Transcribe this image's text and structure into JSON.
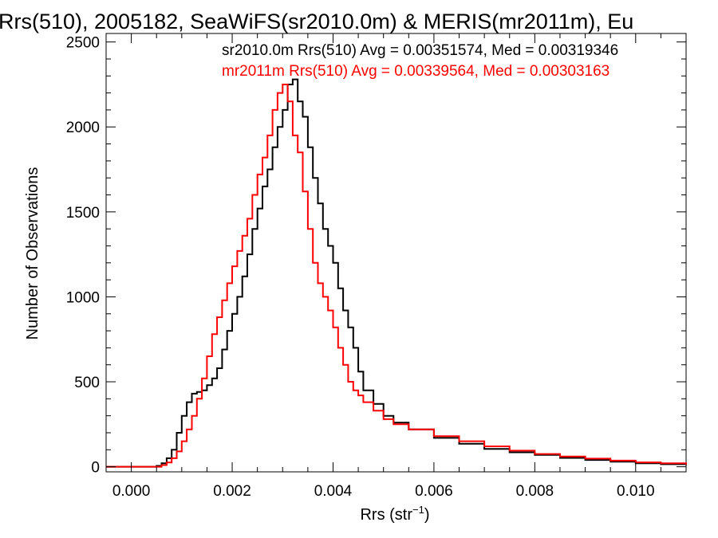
{
  "chart_data": {
    "type": "histogram",
    "title": "Rrs(510), 2005182, SeaWiFS(sr2010.0m) & MERIS(mr2011m), Eu",
    "xlabel": "Rrs (str",
    "xlabel_sup": "−1",
    "xlabel_close": ")",
    "ylabel": "Number of Observations",
    "xlim": [
      -0.0005,
      0.011
    ],
    "ylim": [
      -30,
      2550
    ],
    "xticks": [
      0.0,
      0.002,
      0.004,
      0.006,
      0.008,
      0.01
    ],
    "xtick_labels": [
      "0.000",
      "0.002",
      "0.004",
      "0.006",
      "0.008",
      "0.010"
    ],
    "yticks": [
      0,
      500,
      1000,
      1500,
      2000,
      2500
    ],
    "ytick_labels": [
      "0",
      "500",
      "1000",
      "1500",
      "2000",
      "2500"
    ],
    "grid": false,
    "legend_position": "top-right",
    "series": [
      {
        "name": "sr2010.0m Rrs(510) Avg = 0.00351574, Med = 0.00319346",
        "color": "#000000",
        "x": [
          -0.0005,
          0.0004,
          0.0005,
          0.0006,
          0.0007,
          0.0008,
          0.0009,
          0.001,
          0.0011,
          0.0012,
          0.0013,
          0.0014,
          0.0015,
          0.0016,
          0.0017,
          0.0018,
          0.0019,
          0.002,
          0.0021,
          0.0022,
          0.0023,
          0.0024,
          0.0025,
          0.0026,
          0.0027,
          0.0028,
          0.0029,
          0.003,
          0.0031,
          0.0032,
          0.0033,
          0.0034,
          0.0035,
          0.0036,
          0.0037,
          0.0038,
          0.0039,
          0.004,
          0.0041,
          0.0042,
          0.0043,
          0.0044,
          0.0045,
          0.0046,
          0.0048,
          0.005,
          0.0052,
          0.0055,
          0.006,
          0.0065,
          0.007,
          0.0075,
          0.008,
          0.0085,
          0.009,
          0.0095,
          0.01,
          0.0105,
          0.011
        ],
        "y": [
          0,
          0,
          5,
          20,
          50,
          100,
          200,
          300,
          380,
          430,
          440,
          450,
          480,
          520,
          580,
          690,
          800,
          900,
          1000,
          1120,
          1250,
          1400,
          1520,
          1650,
          1750,
          1880,
          2000,
          2100,
          2250,
          2280,
          2150,
          2060,
          1880,
          1700,
          1550,
          1400,
          1300,
          1200,
          1050,
          920,
          820,
          700,
          560,
          450,
          370,
          300,
          260,
          220,
          170,
          135,
          105,
          85,
          70,
          52,
          40,
          30,
          20,
          15,
          10
        ]
      },
      {
        "name": "mr2011m Rrs(510) Avg = 0.00339564, Med = 0.00303163",
        "color": "#ff0000",
        "x": [
          -0.0005,
          0.0005,
          0.0006,
          0.0007,
          0.0008,
          0.0009,
          0.001,
          0.0011,
          0.0012,
          0.0013,
          0.0014,
          0.0015,
          0.0016,
          0.0017,
          0.0018,
          0.0019,
          0.002,
          0.0021,
          0.0022,
          0.0023,
          0.0024,
          0.0025,
          0.0026,
          0.0027,
          0.0028,
          0.0029,
          0.003,
          0.0031,
          0.0032,
          0.0033,
          0.0034,
          0.0035,
          0.0036,
          0.0037,
          0.0038,
          0.0039,
          0.004,
          0.0041,
          0.0042,
          0.0043,
          0.0044,
          0.0045,
          0.0046,
          0.0048,
          0.005,
          0.0052,
          0.0055,
          0.006,
          0.0065,
          0.007,
          0.0075,
          0.008,
          0.0085,
          0.009,
          0.0095,
          0.01,
          0.0105,
          0.011
        ],
        "y": [
          0,
          0,
          10,
          25,
          50,
          90,
          150,
          220,
          300,
          400,
          520,
          650,
          780,
          880,
          980,
          1080,
          1180,
          1270,
          1360,
          1460,
          1600,
          1720,
          1820,
          1950,
          2100,
          2200,
          2250,
          2150,
          1950,
          1850,
          1620,
          1400,
          1200,
          1080,
          1000,
          920,
          820,
          700,
          600,
          500,
          450,
          420,
          380,
          330,
          280,
          250,
          220,
          180,
          150,
          120,
          95,
          75,
          60,
          48,
          36,
          26,
          20,
          12
        ]
      }
    ]
  }
}
